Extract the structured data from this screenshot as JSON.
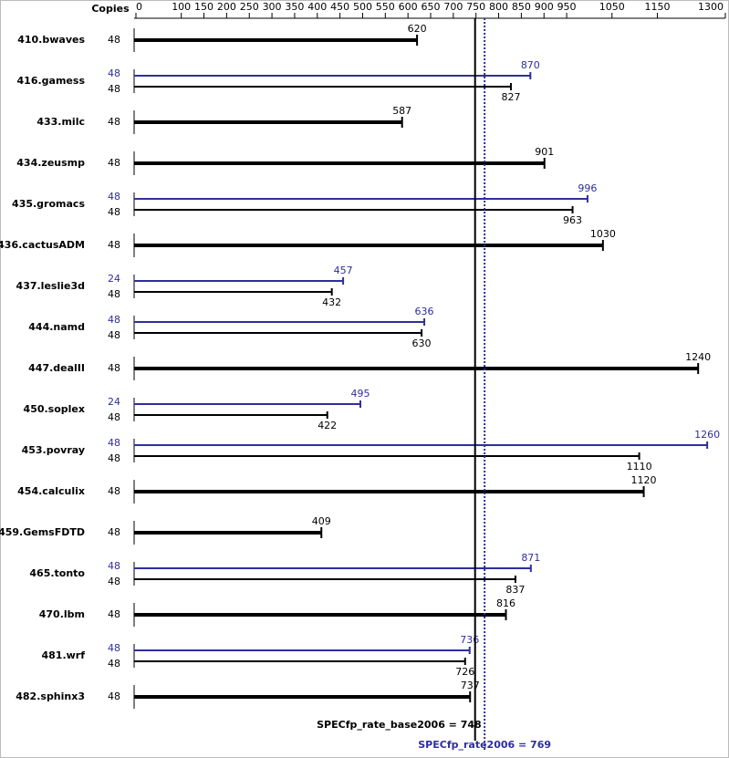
{
  "chart_data": {
    "type": "bar",
    "copies_header": "Copies",
    "xlim": [
      0,
      1300
    ],
    "xticks": [
      0,
      100,
      150,
      200,
      250,
      300,
      350,
      400,
      450,
      500,
      550,
      600,
      650,
      700,
      750,
      800,
      850,
      900,
      950,
      1050,
      1150,
      1300
    ],
    "categories": [
      "410.bwaves",
      "416.gamess",
      "433.milc",
      "434.zeusmp",
      "435.gromacs",
      "436.cactusADM",
      "437.leslie3d",
      "444.namd",
      "447.dealII",
      "450.soplex",
      "453.povray",
      "454.calculix",
      "459.GemsFDTD",
      "465.tonto",
      "470.lbm",
      "481.wrf",
      "482.sphinx3"
    ],
    "series": [
      {
        "color": "#000000",
        "values": [
          620,
          827,
          587,
          901,
          963,
          1030,
          432,
          630,
          1240,
          422,
          1110,
          1120,
          409,
          837,
          816,
          726,
          737
        ],
        "copies": [
          48,
          48,
          48,
          48,
          48,
          48,
          48,
          48,
          48,
          48,
          48,
          48,
          48,
          48,
          48,
          48,
          48
        ]
      },
      {
        "color": "#2e2e9e",
        "values": [
          null,
          870,
          null,
          null,
          996,
          null,
          457,
          636,
          null,
          495,
          1260,
          null,
          null,
          871,
          null,
          736,
          null
        ],
        "copies": [
          null,
          48,
          null,
          null,
          48,
          null,
          24,
          48,
          null,
          24,
          48,
          null,
          null,
          48,
          null,
          48,
          null
        ]
      }
    ],
    "reference_lines": [
      {
        "value": 748,
        "label": "SPECfp_rate_base2006 = 748",
        "color": "#000000",
        "style": "solid"
      },
      {
        "value": 769,
        "label": "SPECfp_rate2006 = 769",
        "color": "#2e2e9e",
        "style": "dotted"
      }
    ]
  }
}
